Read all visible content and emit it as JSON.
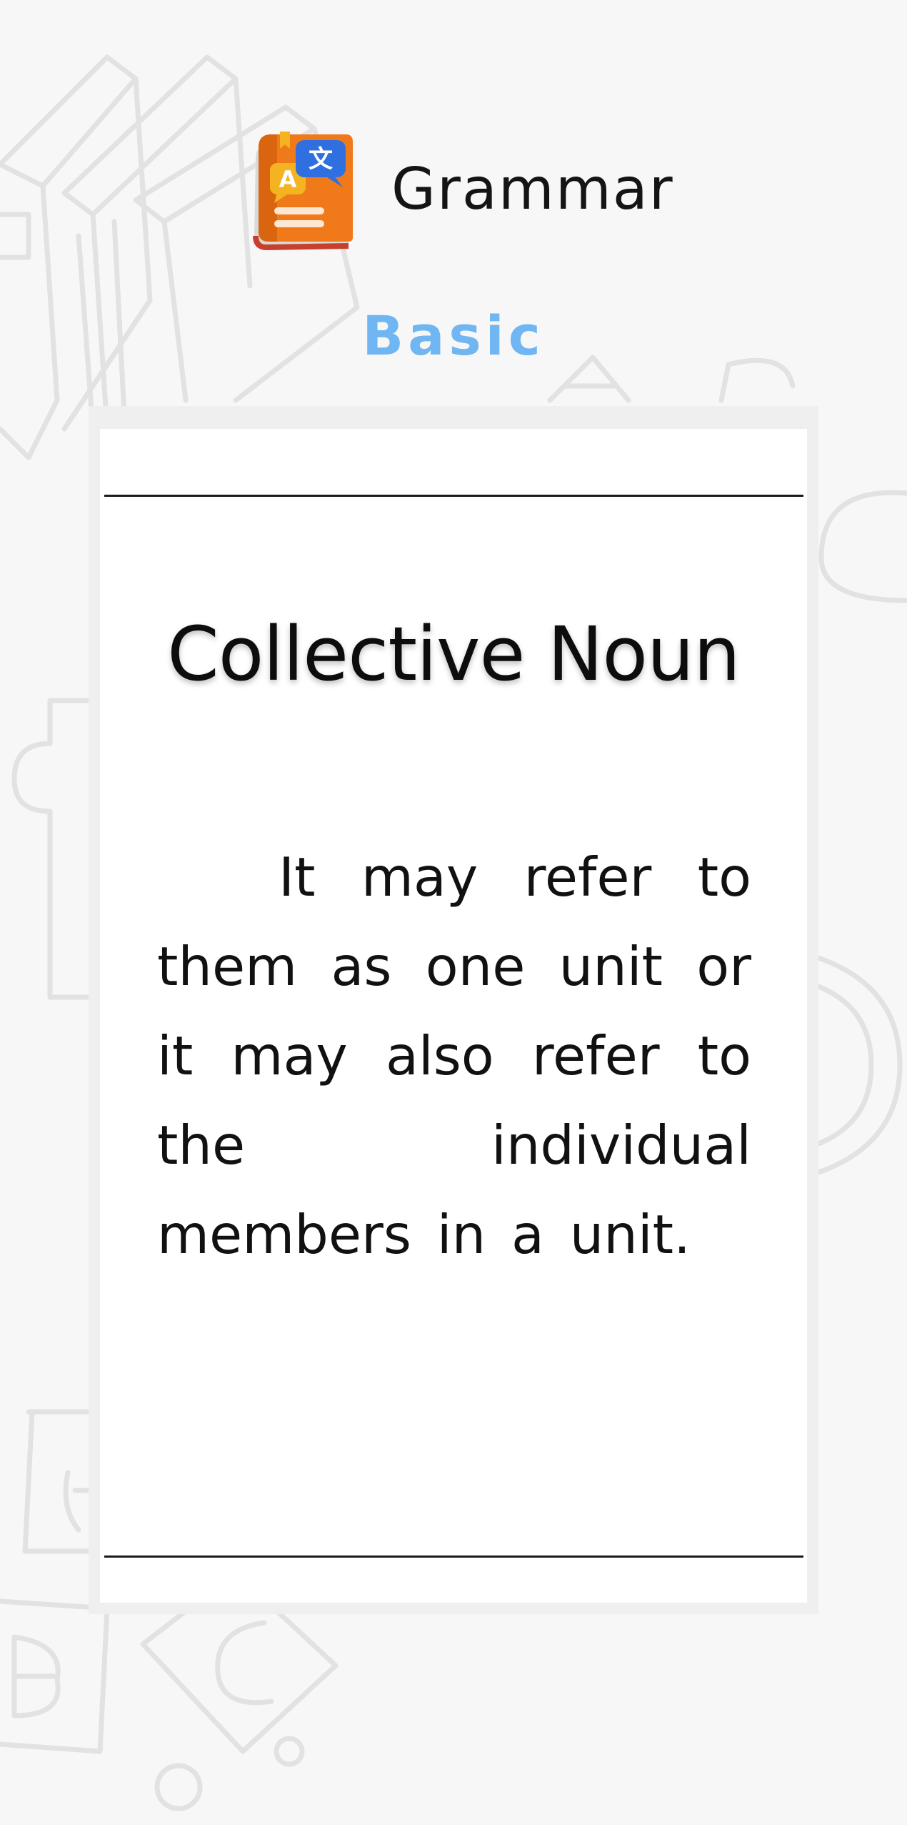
{
  "header": {
    "app_title": "Grammar",
    "level": "Basic",
    "app_icon": "grammar-book-translate-icon"
  },
  "lesson": {
    "title": "Collective Noun",
    "body": "It may refer to them as one unit or it may also refer to the individual members in a unit."
  },
  "colors": {
    "background": "#f7f7f7",
    "level_accent": "#6fb6f2",
    "icon_book": "#f07a1a",
    "icon_bubble": "#2f6fe0",
    "icon_bubble_secondary": "#f4b422"
  }
}
